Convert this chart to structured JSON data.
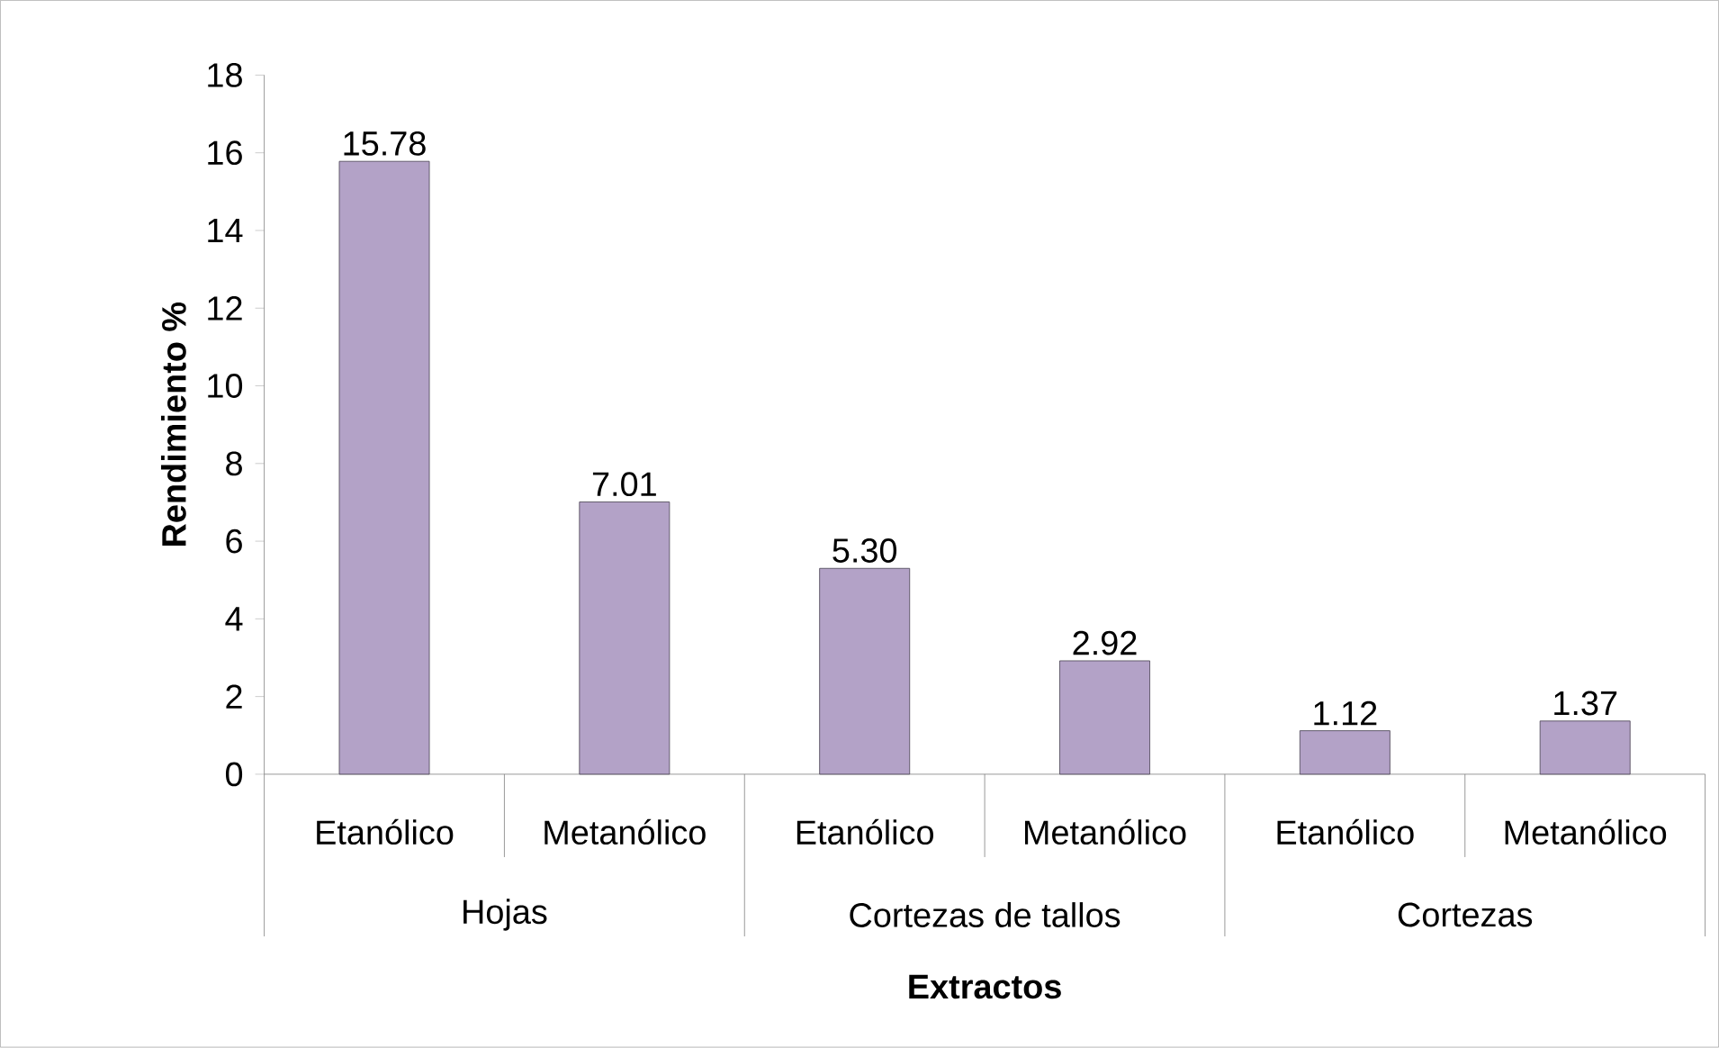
{
  "chart_data": {
    "type": "bar",
    "xlabel": "Extractos",
    "ylabel": "Rendimiento %",
    "categories": [
      "Etanólico",
      "Metanólico",
      "Etanólico",
      "Metanólico",
      "Etanólico",
      "Metanólico"
    ],
    "values": [
      15.78,
      7.01,
      5.3,
      2.92,
      1.12,
      1.37
    ],
    "value_labels": [
      "15.78",
      "7.01",
      "5.30",
      "2.92",
      "1.12",
      "1.37"
    ],
    "color": "#b3a2c7",
    "ylim": [
      0,
      18
    ],
    "yticks": [
      0,
      2,
      4,
      6,
      8,
      10,
      12,
      14,
      16,
      18
    ],
    "annotations": [
      "Hojas",
      "Cortezas de tallos",
      "Cortezas"
    ]
  }
}
